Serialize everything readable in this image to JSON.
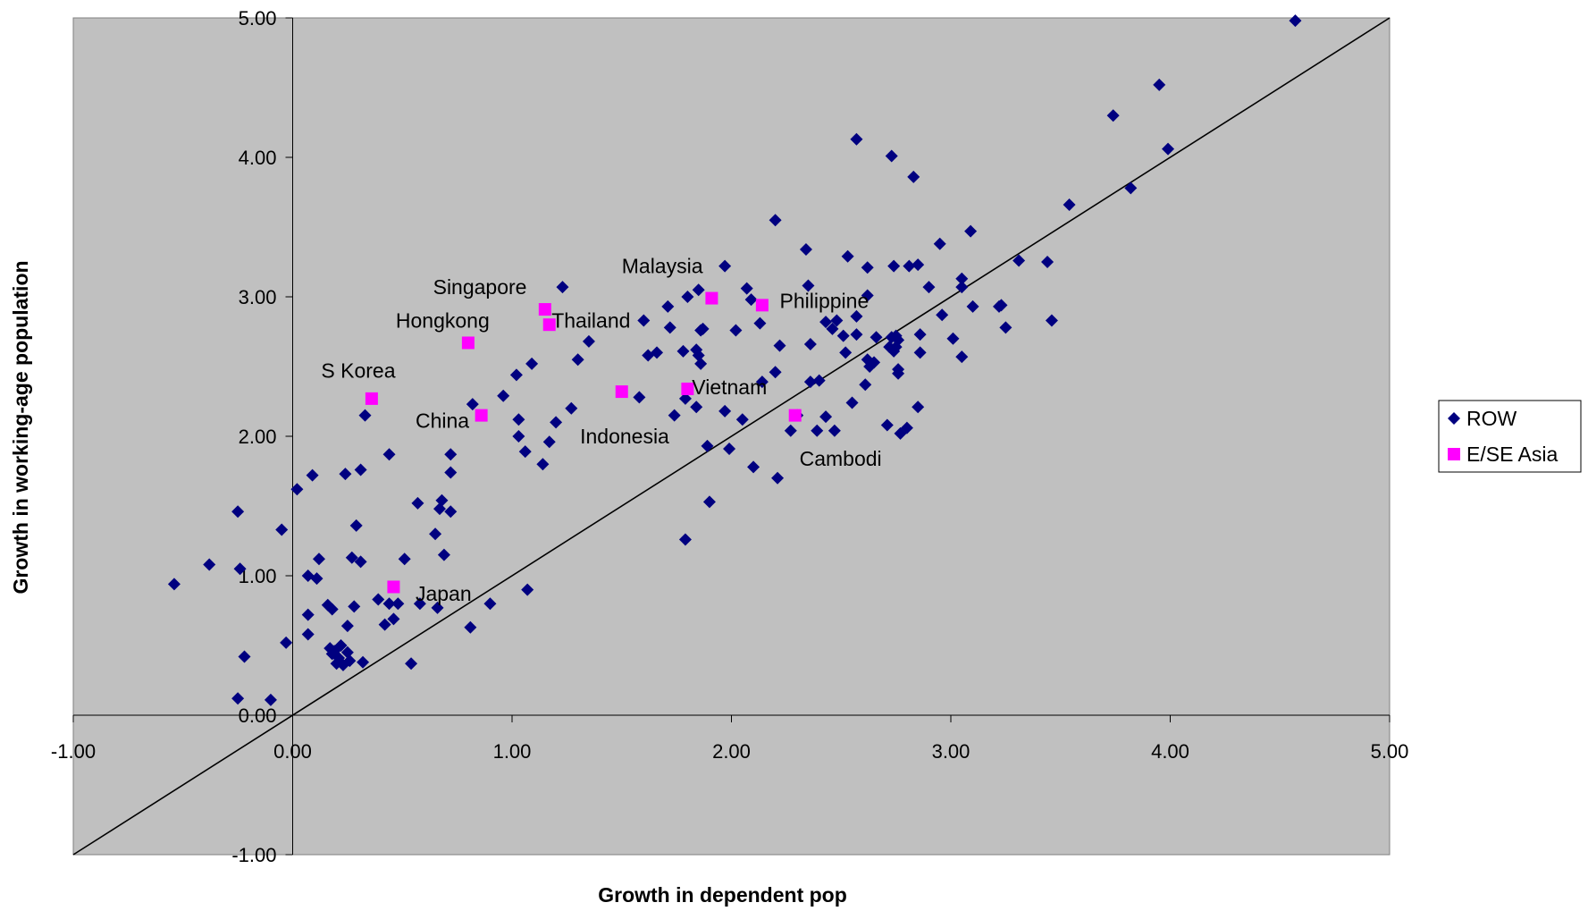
{
  "chart_data": {
    "type": "scatter",
    "xlabel": "Growth in dependent pop",
    "ylabel": "Growth in working-age population",
    "xlim": [
      -1,
      5
    ],
    "ylim": [
      -1,
      5
    ],
    "x_ticks": [
      "-1.00",
      "0.00",
      "1.00",
      "2.00",
      "3.00",
      "4.00",
      "5.00"
    ],
    "y_ticks": [
      "-1.00",
      "0.00",
      "1.00",
      "2.00",
      "3.00",
      "4.00",
      "5.00"
    ],
    "reference_line": {
      "from": [
        -1,
        -1
      ],
      "to": [
        5,
        5
      ]
    },
    "plot_background": "#c0c0c0",
    "legend_position": "right",
    "series": [
      {
        "name": "ROW",
        "color": "#000080",
        "marker": "diamond",
        "points": [
          [
            -0.54,
            0.94
          ],
          [
            -0.38,
            1.08
          ],
          [
            -0.25,
            1.46
          ],
          [
            -0.24,
            1.05
          ],
          [
            -0.22,
            0.42
          ],
          [
            -0.25,
            0.12
          ],
          [
            -0.1,
            0.11
          ],
          [
            -0.05,
            1.33
          ],
          [
            -0.03,
            0.52
          ],
          [
            0.02,
            1.62
          ],
          [
            0.07,
            1.0
          ],
          [
            0.07,
            0.72
          ],
          [
            0.07,
            0.58
          ],
          [
            0.09,
            1.72
          ],
          [
            0.11,
            0.98
          ],
          [
            0.12,
            1.12
          ],
          [
            0.16,
            0.79
          ],
          [
            0.18,
            0.76
          ],
          [
            0.17,
            0.48
          ],
          [
            0.18,
            0.44
          ],
          [
            0.19,
            0.46
          ],
          [
            0.2,
            0.37
          ],
          [
            0.21,
            0.41
          ],
          [
            0.22,
            0.5
          ],
          [
            0.23,
            0.36
          ],
          [
            0.24,
            1.73
          ],
          [
            0.25,
            0.45
          ],
          [
            0.25,
            0.64
          ],
          [
            0.26,
            0.39
          ],
          [
            0.27,
            1.13
          ],
          [
            0.28,
            0.78
          ],
          [
            0.29,
            1.36
          ],
          [
            0.31,
            1.76
          ],
          [
            0.31,
            1.1
          ],
          [
            0.32,
            0.38
          ],
          [
            0.33,
            2.15
          ],
          [
            0.39,
            0.83
          ],
          [
            0.42,
            0.65
          ],
          [
            0.44,
            1.87
          ],
          [
            0.44,
            0.8
          ],
          [
            0.46,
            0.69
          ],
          [
            0.48,
            0.8
          ],
          [
            0.51,
            1.12
          ],
          [
            0.54,
            0.37
          ],
          [
            0.57,
            1.52
          ],
          [
            0.58,
            0.8
          ],
          [
            0.65,
            1.3
          ],
          [
            0.66,
            0.77
          ],
          [
            0.67,
            1.48
          ],
          [
            0.68,
            1.54
          ],
          [
            0.69,
            1.15
          ],
          [
            0.72,
            1.46
          ],
          [
            0.72,
            1.74
          ],
          [
            0.72,
            1.87
          ],
          [
            0.81,
            0.63
          ],
          [
            0.82,
            2.23
          ],
          [
            0.9,
            0.8
          ],
          [
            0.96,
            2.29
          ],
          [
            1.02,
            2.44
          ],
          [
            1.03,
            2.12
          ],
          [
            1.03,
            2.0
          ],
          [
            1.06,
            1.89
          ],
          [
            1.07,
            0.9
          ],
          [
            1.09,
            2.52
          ],
          [
            1.14,
            1.8
          ],
          [
            1.17,
            1.96
          ],
          [
            1.2,
            2.1
          ],
          [
            1.23,
            3.07
          ],
          [
            1.27,
            2.2
          ],
          [
            1.3,
            2.55
          ],
          [
            1.35,
            2.68
          ],
          [
            1.58,
            2.28
          ],
          [
            1.6,
            2.83
          ],
          [
            1.62,
            2.58
          ],
          [
            1.66,
            2.6
          ],
          [
            1.71,
            2.93
          ],
          [
            1.72,
            2.78
          ],
          [
            1.74,
            2.15
          ],
          [
            1.78,
            2.61
          ],
          [
            1.79,
            2.27
          ],
          [
            1.79,
            1.26
          ],
          [
            1.8,
            3.0
          ],
          [
            1.84,
            2.62
          ],
          [
            1.84,
            2.21
          ],
          [
            1.85,
            3.05
          ],
          [
            1.85,
            2.58
          ],
          [
            1.86,
            2.76
          ],
          [
            1.86,
            2.52
          ],
          [
            1.87,
            2.77
          ],
          [
            1.89,
            1.93
          ],
          [
            1.9,
            1.53
          ],
          [
            1.97,
            3.22
          ],
          [
            1.97,
            2.18
          ],
          [
            1.99,
            1.91
          ],
          [
            2.02,
            2.76
          ],
          [
            2.05,
            2.12
          ],
          [
            2.07,
            3.06
          ],
          [
            2.09,
            2.98
          ],
          [
            2.1,
            1.78
          ],
          [
            2.13,
            2.81
          ],
          [
            2.14,
            2.39
          ],
          [
            2.2,
            3.55
          ],
          [
            2.2,
            2.46
          ],
          [
            2.21,
            1.7
          ],
          [
            2.22,
            2.65
          ],
          [
            2.27,
            2.04
          ],
          [
            2.3,
            2.15
          ],
          [
            2.34,
            3.34
          ],
          [
            2.35,
            3.08
          ],
          [
            2.36,
            2.66
          ],
          [
            2.36,
            2.39
          ],
          [
            2.39,
            2.04
          ],
          [
            2.4,
            2.4
          ],
          [
            2.43,
            2.82
          ],
          [
            2.43,
            2.14
          ],
          [
            2.46,
            2.77
          ],
          [
            2.47,
            2.04
          ],
          [
            2.48,
            2.83
          ],
          [
            2.51,
            2.72
          ],
          [
            2.52,
            2.6
          ],
          [
            2.53,
            3.29
          ],
          [
            2.55,
            2.24
          ],
          [
            2.57,
            2.86
          ],
          [
            2.57,
            2.73
          ],
          [
            2.57,
            4.13
          ],
          [
            2.61,
            2.37
          ],
          [
            2.62,
            3.21
          ],
          [
            2.62,
            3.01
          ],
          [
            2.62,
            2.55
          ],
          [
            2.63,
            2.5
          ],
          [
            2.65,
            2.53
          ],
          [
            2.66,
            2.71
          ],
          [
            2.71,
            2.08
          ],
          [
            2.72,
            2.64
          ],
          [
            2.73,
            4.01
          ],
          [
            2.73,
            2.71
          ],
          [
            2.74,
            2.61
          ],
          [
            2.74,
            3.22
          ],
          [
            2.75,
            2.72
          ],
          [
            2.75,
            2.64
          ],
          [
            2.76,
            2.48
          ],
          [
            2.76,
            2.45
          ],
          [
            2.76,
            2.69
          ],
          [
            2.77,
            2.02
          ],
          [
            2.8,
            2.06
          ],
          [
            2.81,
            3.22
          ],
          [
            2.83,
            3.86
          ],
          [
            2.85,
            3.23
          ],
          [
            2.85,
            2.21
          ],
          [
            2.86,
            2.73
          ],
          [
            2.86,
            2.6
          ],
          [
            2.9,
            3.07
          ],
          [
            2.95,
            3.38
          ],
          [
            2.96,
            2.87
          ],
          [
            3.01,
            2.7
          ],
          [
            3.05,
            3.13
          ],
          [
            3.05,
            3.07
          ],
          [
            3.05,
            2.57
          ],
          [
            3.09,
            3.47
          ],
          [
            3.1,
            2.93
          ],
          [
            3.22,
            2.93
          ],
          [
            3.23,
            2.94
          ],
          [
            3.25,
            2.78
          ],
          [
            3.31,
            3.26
          ],
          [
            3.44,
            3.25
          ],
          [
            3.46,
            2.83
          ],
          [
            3.54,
            3.66
          ],
          [
            3.74,
            4.3
          ],
          [
            3.82,
            3.78
          ],
          [
            3.95,
            4.52
          ],
          [
            3.99,
            4.06
          ],
          [
            4.57,
            4.98
          ]
        ]
      },
      {
        "name": "E/SE Asia",
        "color": "#ff00ff",
        "marker": "square",
        "points": [
          [
            1.15,
            2.91
          ],
          [
            1.17,
            2.8
          ],
          [
            0.8,
            2.67
          ],
          [
            0.36,
            2.27
          ],
          [
            0.86,
            2.15
          ],
          [
            1.5,
            2.32
          ],
          [
            1.8,
            2.34
          ],
          [
            1.91,
            2.99
          ],
          [
            2.14,
            2.94
          ],
          [
            2.29,
            2.15
          ],
          [
            0.46,
            0.92
          ]
        ]
      }
    ],
    "annotations": [
      {
        "text": "Singapore",
        "x": 0.64,
        "y": 3.02
      },
      {
        "text": "Thailand",
        "x": 1.18,
        "y": 2.78
      },
      {
        "text": "Hongkong",
        "x": 0.47,
        "y": 2.78
      },
      {
        "text": "S Korea",
        "x": 0.13,
        "y": 2.42
      },
      {
        "text": "China",
        "x": 0.56,
        "y": 2.06
      },
      {
        "text": "Indonesia",
        "x": 1.31,
        "y": 1.95
      },
      {
        "text": "Malaysia",
        "x": 1.5,
        "y": 3.17
      },
      {
        "text": "Vietnam",
        "x": 1.82,
        "y": 2.3
      },
      {
        "text": "Philippine",
        "x": 2.22,
        "y": 2.92
      },
      {
        "text": "Cambodi",
        "x": 2.31,
        "y": 1.79
      },
      {
        "text": "Japan",
        "x": 0.56,
        "y": 0.82
      }
    ]
  }
}
